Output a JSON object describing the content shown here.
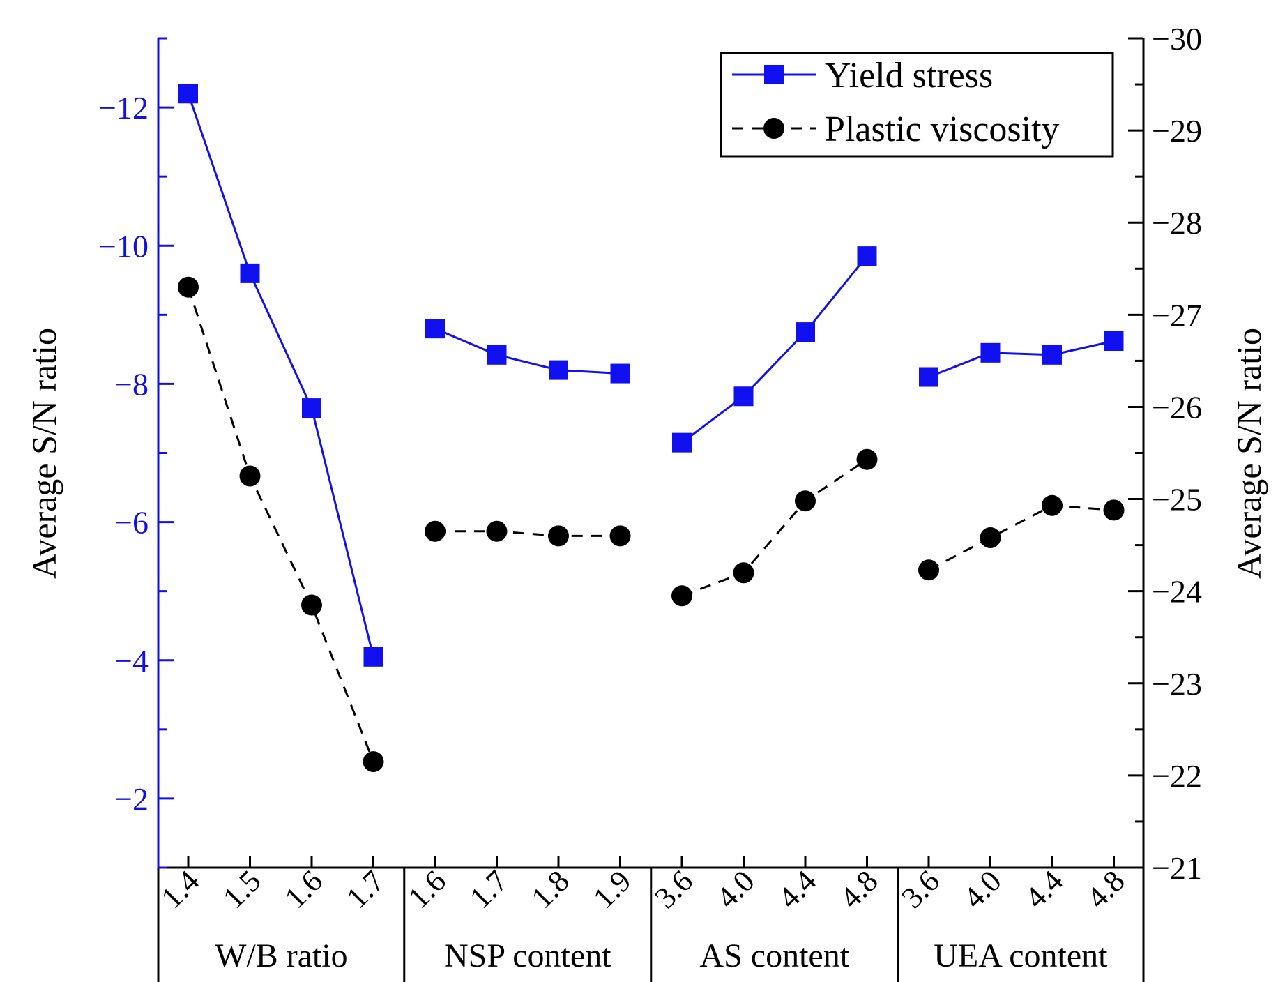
{
  "chart_data": {
    "type": "line",
    "title": "",
    "groups": [
      {
        "label": "W/B ratio",
        "categories": [
          "1.4",
          "1.5",
          "1.6",
          "1.7"
        ]
      },
      {
        "label": "NSP content",
        "categories": [
          "1.6",
          "1.7",
          "1.8",
          "1.9"
        ]
      },
      {
        "label": "AS content",
        "categories": [
          "3.6",
          "4.0",
          "4.4",
          "4.8"
        ]
      },
      {
        "label": "UEA content",
        "categories": [
          "3.6",
          "4.0",
          "4.4",
          "4.8"
        ]
      }
    ],
    "y_left": {
      "label": "Average S/N ratio",
      "range": [
        -1,
        -13
      ],
      "ticks": [
        "−12",
        "−10",
        "−8",
        "−6",
        "−4",
        "−2"
      ],
      "tick_values": [
        -12,
        -10,
        -8,
        -6,
        -4,
        -2
      ],
      "color": "#1010e6"
    },
    "y_right": {
      "label": "Average S/N ratio",
      "range": [
        -21,
        -30
      ],
      "ticks": [
        "−30",
        "−29",
        "−28",
        "−27",
        "−26",
        "−25",
        "−24",
        "−23",
        "−22",
        "−21"
      ],
      "tick_values": [
        -30,
        -29,
        -28,
        -27,
        -26,
        -25,
        -24,
        -23,
        -22,
        -21
      ],
      "color": "#000000"
    },
    "series": [
      {
        "name": "Yield stress",
        "axis": "left",
        "color": "#1010f0",
        "marker": "square",
        "line": "solid",
        "values": [
          [
            -12.2,
            -9.6,
            -7.65,
            -4.05
          ],
          [
            -8.8,
            -8.42,
            -8.2,
            -8.15
          ],
          [
            -7.15,
            -7.82,
            -8.75,
            -9.85
          ],
          [
            -8.1,
            -8.45,
            -8.42,
            -8.62
          ]
        ]
      },
      {
        "name": "Plastic viscosity",
        "axis": "right",
        "color": "#000000",
        "marker": "circle",
        "line": "dashed",
        "values": [
          [
            -27.3,
            -25.25,
            -23.85,
            -22.15
          ],
          [
            -24.65,
            -24.65,
            -24.6,
            -24.6
          ],
          [
            -23.95,
            -24.2,
            -24.98,
            -25.43
          ],
          [
            -24.23,
            -24.58,
            -24.93,
            -24.88
          ]
        ]
      }
    ],
    "legend": {
      "position": "top-right",
      "entries": [
        "Yield stress",
        "Plastic viscosity"
      ]
    }
  }
}
